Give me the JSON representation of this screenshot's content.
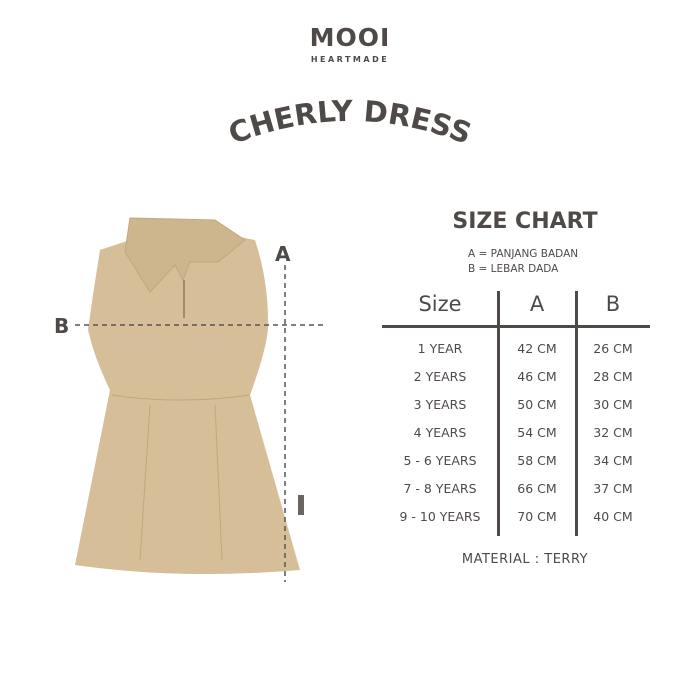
{
  "brand": {
    "name": "MOOI",
    "tagline": "HEARTMADE"
  },
  "product_title": "CHERLY DRESS",
  "diagram": {
    "label_a": "A",
    "label_b": "B",
    "dress_color": "#d6bf98"
  },
  "size_chart": {
    "title": "SIZE CHART",
    "legend": [
      "A = PANJANG BADAN",
      "B = LEBAR DADA"
    ],
    "headers": [
      "Size",
      "A",
      "B"
    ],
    "rows": [
      [
        "1 YEAR",
        "42 CM",
        "26 CM"
      ],
      [
        "2 YEARS",
        "46 CM",
        "28 CM"
      ],
      [
        "3 YEARS",
        "50 CM",
        "30 CM"
      ],
      [
        "4 YEARS",
        "54 CM",
        "32 CM"
      ],
      [
        "5 - 6 YEARS",
        "58 CM",
        "34 CM"
      ],
      [
        "7 - 8 YEARS",
        "66 CM",
        "37 CM"
      ],
      [
        "9 - 10 YEARS",
        "70 CM",
        "40 CM"
      ]
    ],
    "material": "MATERIAL : TERRY"
  },
  "colors": {
    "text": "#4f4a47"
  }
}
